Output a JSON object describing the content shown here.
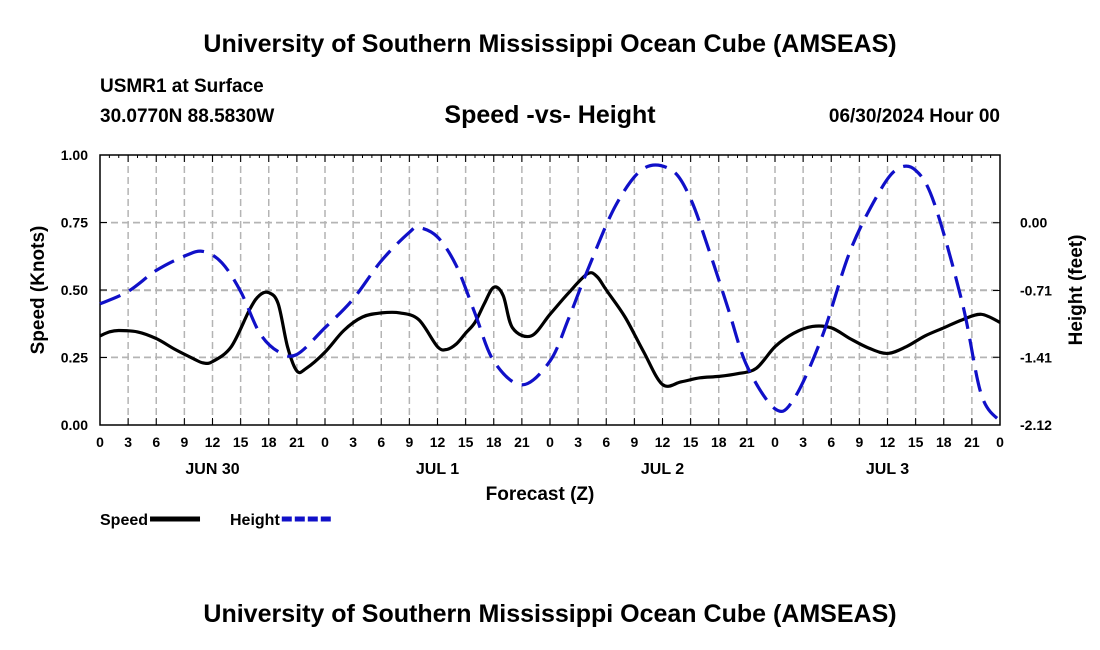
{
  "page": {
    "title": "University of Southern Mississippi Ocean Cube (AMSEAS)",
    "footer_title": "University of Southern Mississippi Ocean Cube (AMSEAS)",
    "station": "USMR1 at Surface",
    "coords": "30.0770N  88.5830W",
    "subtitle": "Speed -vs- Height",
    "datestamp": "06/30/2024 Hour 00"
  },
  "chart_data": {
    "type": "line",
    "title": "Speed -vs- Height",
    "xlabel": "Forecast (Z)",
    "ylabel": "Speed (Knots)",
    "y2label": "Height (feet)",
    "xlim": [
      0,
      96
    ],
    "ylim": [
      0,
      1
    ],
    "y2lim": [
      -2.12,
      0.71
    ],
    "grid": true,
    "x_ticks": [
      0,
      3,
      6,
      9,
      12,
      15,
      18,
      21,
      24,
      27,
      30,
      33,
      36,
      39,
      42,
      45,
      48,
      51,
      54,
      57,
      60,
      63,
      66,
      69,
      72,
      75,
      78,
      81,
      84,
      87,
      90,
      93,
      96
    ],
    "x_tick_labels": [
      "0",
      "3",
      "6",
      "9",
      "12",
      "15",
      "18",
      "21",
      "0",
      "3",
      "6",
      "9",
      "12",
      "15",
      "18",
      "21",
      "0",
      "3",
      "6",
      "9",
      "12",
      "15",
      "18",
      "21",
      "0",
      "3",
      "6",
      "9",
      "12",
      "15",
      "18",
      "21",
      "0"
    ],
    "day_labels": [
      {
        "label": "JUN 30",
        "hour": 12
      },
      {
        "label": "JUL 1",
        "hour": 36
      },
      {
        "label": "JUL 2",
        "hour": 60
      },
      {
        "label": "JUL 3",
        "hour": 84
      }
    ],
    "y_ticks": [
      0,
      0.25,
      0.5,
      0.75,
      1.0
    ],
    "y_tick_labels": [
      "0.00",
      "0.25",
      "0.50",
      "0.75",
      "1.00"
    ],
    "y2_ticks": [
      -2.12,
      -1.41,
      -0.71,
      0.0
    ],
    "y2_tick_labels": [
      "-2.12",
      "-1.41",
      "-0.71",
      "0.00"
    ],
    "legend": [
      {
        "name": "Speed",
        "color": "#000000",
        "style": "solid"
      },
      {
        "name": "Height",
        "color": "#1010c8",
        "style": "dashed"
      }
    ],
    "series": [
      {
        "name": "Speed",
        "axis": "left",
        "color": "#000000",
        "style": "solid",
        "x": [
          0,
          1,
          2,
          4,
          6,
          8,
          10,
          11,
          12,
          14,
          16,
          17,
          18,
          19,
          20,
          21,
          22,
          24,
          26,
          28,
          30,
          32,
          34,
          36,
          37,
          38,
          39,
          40,
          41,
          42,
          43,
          44,
          46,
          48,
          50,
          52,
          53,
          54,
          56,
          58,
          60,
          62,
          64,
          66,
          68,
          70,
          72,
          74,
          76,
          78,
          80,
          82,
          84,
          86,
          88,
          90,
          92,
          94,
          96
        ],
        "values": [
          0.33,
          0.345,
          0.35,
          0.345,
          0.32,
          0.28,
          0.245,
          0.23,
          0.235,
          0.29,
          0.43,
          0.48,
          0.49,
          0.45,
          0.29,
          0.2,
          0.21,
          0.27,
          0.35,
          0.4,
          0.415,
          0.415,
          0.39,
          0.29,
          0.28,
          0.3,
          0.34,
          0.38,
          0.45,
          0.51,
          0.48,
          0.36,
          0.33,
          0.41,
          0.49,
          0.56,
          0.55,
          0.5,
          0.4,
          0.27,
          0.15,
          0.16,
          0.175,
          0.18,
          0.19,
          0.21,
          0.29,
          0.34,
          0.365,
          0.36,
          0.32,
          0.285,
          0.265,
          0.29,
          0.33,
          0.36,
          0.39,
          0.41,
          0.38
        ]
      },
      {
        "name": "Height",
        "axis": "right",
        "color": "#1010c8",
        "style": "dashed",
        "x": [
          0,
          3,
          6,
          9,
          11,
          13,
          15,
          17,
          19,
          21,
          24,
          27,
          30,
          33,
          34,
          36,
          38,
          40,
          42,
          45,
          48,
          50,
          52,
          55,
          58,
          61,
          63,
          65,
          67,
          69,
          72,
          74,
          77,
          80,
          83,
          85,
          87,
          89,
          92,
          94,
          96
        ],
        "values": [
          -0.85,
          -0.72,
          -0.5,
          -0.35,
          -0.3,
          -0.42,
          -0.72,
          -1.15,
          -1.35,
          -1.38,
          -1.1,
          -0.8,
          -0.4,
          -0.1,
          -0.05,
          -0.15,
          -0.45,
          -0.95,
          -1.45,
          -1.7,
          -1.45,
          -1.0,
          -0.5,
          0.18,
          0.57,
          0.55,
          0.25,
          -0.3,
          -0.9,
          -1.5,
          -1.95,
          -1.85,
          -1.2,
          -0.3,
          0.3,
          0.56,
          0.55,
          0.2,
          -0.85,
          -1.8,
          -2.08
        ]
      }
    ]
  }
}
